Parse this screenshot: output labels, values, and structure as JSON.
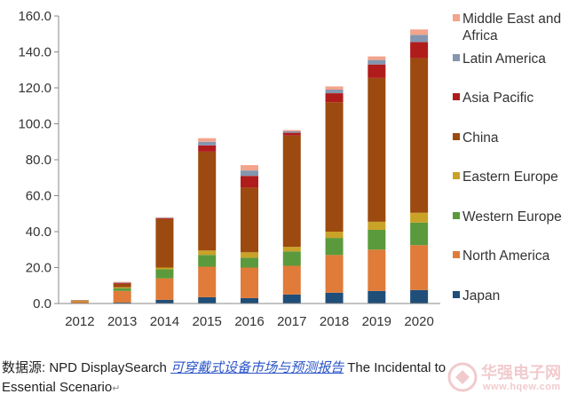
{
  "chart_data": {
    "type": "bar",
    "stacked": true,
    "categories": [
      "2012",
      "2013",
      "2014",
      "2015",
      "2016",
      "2017",
      "2018",
      "2019",
      "2020"
    ],
    "ylim": [
      0,
      160
    ],
    "yticks": [
      "0.0",
      "20.0",
      "40.0",
      "60.0",
      "80.0",
      "100.0",
      "120.0",
      "140.0",
      "160.0"
    ],
    "legend_position": "right",
    "grid": false,
    "series": [
      {
        "name": "Japan",
        "color": "#1f4e79",
        "values": [
          0.2,
          0.5,
          2.0,
          3.5,
          3.0,
          5.0,
          6.0,
          7.0,
          7.5
        ]
      },
      {
        "name": "North America",
        "color": "#e07b39",
        "values": [
          1.0,
          6.5,
          12.0,
          17.0,
          17.0,
          16.0,
          21.0,
          23.0,
          25.0
        ]
      },
      {
        "name": "Western Europe",
        "color": "#5a9a3c",
        "values": [
          0.2,
          1.5,
          5.0,
          6.5,
          5.5,
          8.0,
          9.5,
          11.0,
          12.5
        ]
      },
      {
        "name": "Eastern Europe",
        "color": "#c9a227",
        "values": [
          0.1,
          0.5,
          1.0,
          2.5,
          3.0,
          2.5,
          3.5,
          4.5,
          5.5
        ]
      },
      {
        "name": "China",
        "color": "#9c4a0f",
        "values": [
          0.3,
          2.0,
          27.0,
          55.0,
          36.0,
          62.0,
          72.0,
          80.0,
          86.0
        ]
      },
      {
        "name": "Asia Pacific",
        "color": "#b01c1c",
        "values": [
          0.0,
          0.5,
          0.5,
          3.5,
          6.5,
          1.5,
          5.0,
          7.5,
          9.0
        ]
      },
      {
        "name": "Latin America",
        "color": "#8496b0",
        "values": [
          0.0,
          0.3,
          0.3,
          2.0,
          3.0,
          0.8,
          2.0,
          2.5,
          4.0
        ]
      },
      {
        "name": "Middle East and Africa",
        "legend_lines": [
          "Middle East and",
          "Africa"
        ],
        "color": "#f2a48c",
        "values": [
          0.0,
          0.2,
          0.2,
          2.0,
          3.0,
          0.7,
          1.8,
          2.0,
          3.0
        ]
      }
    ]
  },
  "caption": {
    "prefix": "数据源: NPD DisplaySearch ",
    "link": "可穿戴式设备市场与预测报告",
    "suffix": " The Incidental to Essential Scenario"
  },
  "watermark": {
    "text": "华强电子网",
    "url": "www.hqew.com"
  }
}
